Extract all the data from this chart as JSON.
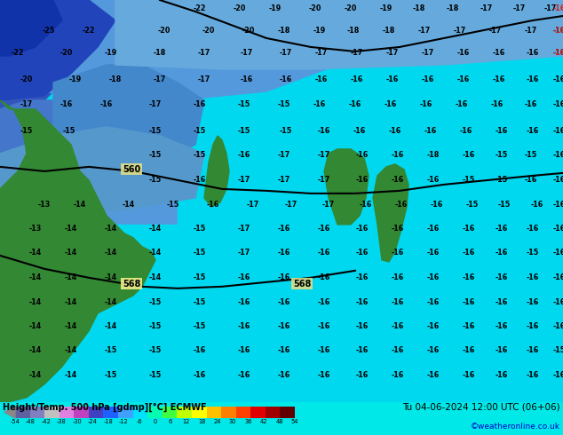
{
  "title_left": "Height/Temp. 500 hPa [gdmp][°C] ECMWF",
  "title_right": "Tu 04-06-2024 12:00 UTC (06+06)",
  "credit": "©weatheronline.co.uk",
  "bg_color": "#00e8e8",
  "colorbar_colors": [
    "#6060a0",
    "#8080c0",
    "#c0c0c0",
    "#e080e0",
    "#c040c0",
    "#4040c0",
    "#2060ff",
    "#40a0ff",
    "#00e0ff",
    "#00ffb0",
    "#40ff40",
    "#c0ff00",
    "#ffff00",
    "#ffc000",
    "#ff8000",
    "#ff4000",
    "#e00000",
    "#a00000",
    "#600000"
  ],
  "tick_vals": [
    -54,
    -48,
    -42,
    -38,
    -30,
    -24,
    -18,
    -12,
    -6,
    0,
    6,
    12,
    18,
    24,
    30,
    36,
    42,
    48,
    54
  ],
  "credit_color": "#0000cc",
  "map_cyan": "#00d8f0",
  "map_cyan2": "#00c8e0",
  "map_blue1": "#3355cc",
  "map_blue2": "#4477dd",
  "map_blue3": "#6699dd",
  "map_blue4": "#55aaee",
  "map_blue5": "#88bbee",
  "map_green": "#226622",
  "map_green2": "#338833"
}
